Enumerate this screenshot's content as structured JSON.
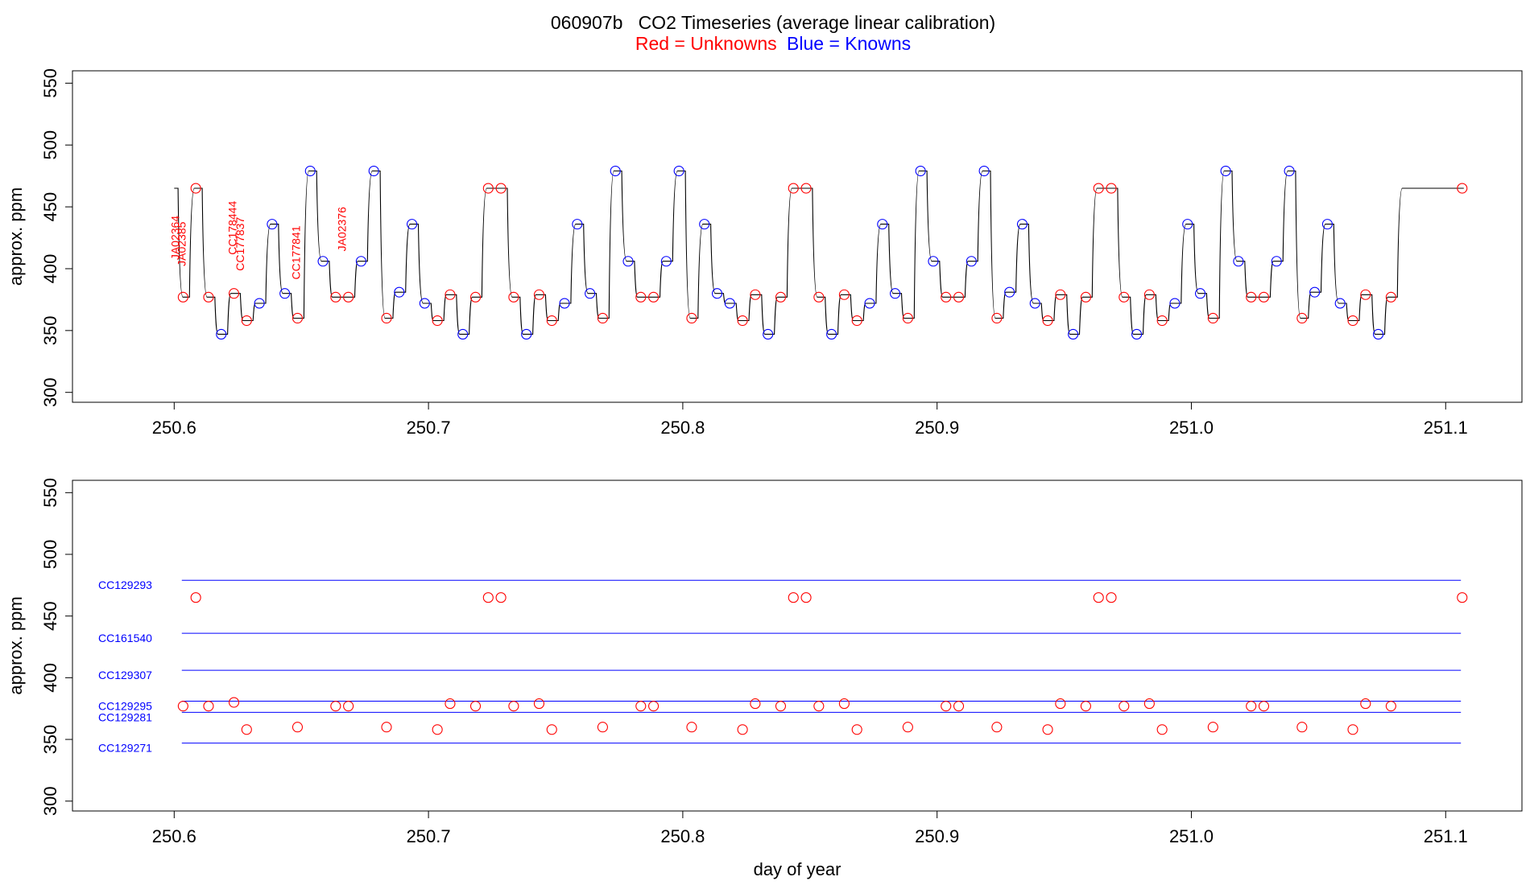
{
  "title": "060907b   CO2 Timeseries (average linear calibration)",
  "subtitle": {
    "red": "Red = Unknowns",
    "blue": "Blue = Knowns",
    "red_color": "#ff0000",
    "blue_color": "#0000ff"
  },
  "chart_data": [
    {
      "type": "line",
      "panel": "top",
      "ylabel": "approx. ppm",
      "xlabel": "",
      "xlim": [
        250.56,
        251.13
      ],
      "ylim": [
        292,
        560
      ],
      "x_ticks": [
        "250.6",
        "250.7",
        "250.8",
        "250.9",
        "251.0",
        "251.1"
      ],
      "y_ticks": [
        "300",
        "350",
        "400",
        "450",
        "500",
        "550"
      ],
      "line_color": "#000000",
      "trace_levels": [
        [
          250.6,
          465
        ],
        [
          250.6015,
          377
        ],
        [
          250.606,
          465
        ],
        [
          250.611,
          377
        ],
        [
          250.616,
          347
        ],
        [
          250.621,
          380
        ],
        [
          250.626,
          358
        ],
        [
          250.631,
          372
        ],
        [
          250.636,
          436
        ],
        [
          250.641,
          380
        ],
        [
          250.646,
          360
        ],
        [
          250.651,
          479
        ],
        [
          250.656,
          406
        ],
        [
          250.661,
          377
        ],
        [
          250.671,
          406
        ],
        [
          250.676,
          479
        ],
        [
          250.681,
          360
        ],
        [
          250.686,
          381
        ],
        [
          250.691,
          436
        ],
        [
          250.696,
          372
        ],
        [
          250.701,
          358
        ],
        [
          250.706,
          379
        ],
        [
          250.711,
          347
        ],
        [
          250.716,
          377
        ],
        [
          250.721,
          465
        ],
        [
          250.731,
          377
        ],
        [
          250.736,
          347
        ],
        [
          250.741,
          379
        ],
        [
          250.746,
          358
        ],
        [
          250.751,
          372
        ],
        [
          250.756,
          436
        ],
        [
          250.761,
          380
        ],
        [
          250.766,
          360
        ],
        [
          250.771,
          479
        ],
        [
          250.776,
          406
        ],
        [
          250.781,
          377
        ],
        [
          250.791,
          406
        ],
        [
          250.796,
          479
        ],
        [
          250.801,
          360
        ],
        [
          250.806,
          436
        ],
        [
          250.811,
          380
        ],
        [
          250.816,
          372
        ],
        [
          250.821,
          358
        ],
        [
          250.826,
          379
        ],
        [
          250.831,
          347
        ],
        [
          250.836,
          377
        ],
        [
          250.841,
          465
        ],
        [
          250.851,
          377
        ],
        [
          250.856,
          347
        ],
        [
          250.861,
          379
        ],
        [
          250.866,
          358
        ],
        [
          250.871,
          372
        ],
        [
          250.876,
          436
        ],
        [
          250.881,
          380
        ],
        [
          250.886,
          360
        ],
        [
          250.891,
          479
        ],
        [
          250.896,
          406
        ],
        [
          250.901,
          377
        ],
        [
          250.911,
          406
        ],
        [
          250.916,
          479
        ],
        [
          250.921,
          360
        ],
        [
          250.926,
          381
        ],
        [
          250.931,
          436
        ],
        [
          250.936,
          372
        ],
        [
          250.941,
          358
        ],
        [
          250.946,
          379
        ],
        [
          250.951,
          347
        ],
        [
          250.956,
          377
        ],
        [
          250.961,
          465
        ],
        [
          250.971,
          377
        ],
        [
          250.976,
          347
        ],
        [
          250.981,
          379
        ],
        [
          250.986,
          358
        ],
        [
          250.991,
          372
        ],
        [
          250.996,
          436
        ],
        [
          251.001,
          380
        ],
        [
          251.006,
          360
        ],
        [
          251.011,
          479
        ],
        [
          251.016,
          406
        ],
        [
          251.021,
          377
        ],
        [
          251.031,
          406
        ],
        [
          251.036,
          479
        ],
        [
          251.041,
          360
        ],
        [
          251.046,
          381
        ],
        [
          251.051,
          436
        ],
        [
          251.056,
          372
        ],
        [
          251.061,
          358
        ],
        [
          251.066,
          379
        ],
        [
          251.071,
          347
        ],
        [
          251.076,
          377
        ],
        [
          251.081,
          465
        ],
        [
          251.1065,
          465
        ]
      ],
      "unknowns": [
        [
          250.6035,
          377
        ],
        [
          250.6085,
          465
        ],
        [
          250.6135,
          377
        ],
        [
          250.6235,
          380
        ],
        [
          250.6285,
          358
        ],
        [
          250.6485,
          360
        ],
        [
          250.6635,
          377
        ],
        [
          250.6685,
          377
        ],
        [
          250.6835,
          360
        ],
        [
          250.7035,
          358
        ],
        [
          250.7085,
          379
        ],
        [
          250.7185,
          377
        ],
        [
          250.7235,
          465
        ],
        [
          250.7285,
          465
        ],
        [
          250.7335,
          377
        ],
        [
          250.7435,
          379
        ],
        [
          250.7485,
          358
        ],
        [
          250.7685,
          360
        ],
        [
          250.7835,
          377
        ],
        [
          250.7885,
          377
        ],
        [
          250.8035,
          360
        ],
        [
          250.8235,
          358
        ],
        [
          250.8285,
          379
        ],
        [
          250.8385,
          377
        ],
        [
          250.8435,
          465
        ],
        [
          250.8485,
          465
        ],
        [
          250.8535,
          377
        ],
        [
          250.8635,
          379
        ],
        [
          250.8685,
          358
        ],
        [
          250.8885,
          360
        ],
        [
          250.9035,
          377
        ],
        [
          250.9085,
          377
        ],
        [
          250.9235,
          360
        ],
        [
          250.9435,
          358
        ],
        [
          250.9485,
          379
        ],
        [
          250.9585,
          377
        ],
        [
          250.9635,
          465
        ],
        [
          250.9685,
          465
        ],
        [
          250.9735,
          377
        ],
        [
          250.9835,
          379
        ],
        [
          250.9885,
          358
        ],
        [
          251.0085,
          360
        ],
        [
          251.0235,
          377
        ],
        [
          251.0285,
          377
        ],
        [
          251.0435,
          360
        ],
        [
          251.0635,
          358
        ],
        [
          251.0685,
          379
        ],
        [
          251.0785,
          377
        ],
        [
          251.1065,
          465
        ]
      ],
      "knowns": [
        [
          250.6185,
          347
        ],
        [
          250.6335,
          372
        ],
        [
          250.6385,
          436
        ],
        [
          250.6435,
          380
        ],
        [
          250.6535,
          479
        ],
        [
          250.6585,
          406
        ],
        [
          250.6735,
          406
        ],
        [
          250.6785,
          479
        ],
        [
          250.6885,
          381
        ],
        [
          250.6935,
          436
        ],
        [
          250.6985,
          372
        ],
        [
          250.7135,
          347
        ],
        [
          250.7385,
          347
        ],
        [
          250.7535,
          372
        ],
        [
          250.7585,
          436
        ],
        [
          250.7635,
          380
        ],
        [
          250.7735,
          479
        ],
        [
          250.7785,
          406
        ],
        [
          250.7935,
          406
        ],
        [
          250.7985,
          479
        ],
        [
          250.8085,
          436
        ],
        [
          250.8135,
          380
        ],
        [
          250.8185,
          372
        ],
        [
          250.8335,
          347
        ],
        [
          250.8585,
          347
        ],
        [
          250.8735,
          372
        ],
        [
          250.8785,
          436
        ],
        [
          250.8835,
          380
        ],
        [
          250.8935,
          479
        ],
        [
          250.8985,
          406
        ],
        [
          250.9135,
          406
        ],
        [
          250.9185,
          479
        ],
        [
          250.9285,
          381
        ],
        [
          250.9335,
          436
        ],
        [
          250.9385,
          372
        ],
        [
          250.9535,
          347
        ],
        [
          250.9785,
          347
        ],
        [
          250.9935,
          372
        ],
        [
          250.9985,
          436
        ],
        [
          251.0035,
          380
        ],
        [
          251.0135,
          479
        ],
        [
          251.0185,
          406
        ],
        [
          251.0335,
          406
        ],
        [
          251.0385,
          479
        ],
        [
          251.0485,
          381
        ],
        [
          251.0535,
          436
        ],
        [
          251.0585,
          372
        ],
        [
          251.0735,
          347
        ]
      ],
      "annotations": [
        {
          "label": "JA02364",
          "x": 250.602,
          "y": 425
        },
        {
          "label": "JA02385",
          "x": 250.6045,
          "y": 420
        },
        {
          "label": "CC178444",
          "x": 250.6245,
          "y": 433
        },
        {
          "label": "CC177837",
          "x": 250.6275,
          "y": 420
        },
        {
          "label": "CC177841",
          "x": 250.6495,
          "y": 413
        },
        {
          "label": "JA02376",
          "x": 250.6675,
          "y": 432
        }
      ]
    },
    {
      "type": "scatter",
      "panel": "bottom",
      "ylabel": "approx. ppm",
      "xlabel": "day of year",
      "xlim": [
        250.56,
        251.13
      ],
      "ylim": [
        292,
        560
      ],
      "x_ticks": [
        "250.6",
        "250.7",
        "250.8",
        "250.9",
        "251.0",
        "251.1"
      ],
      "y_ticks": [
        "300",
        "350",
        "400",
        "450",
        "500",
        "550"
      ],
      "reference_lines": [
        {
          "label": "CC129293",
          "y": 479
        },
        {
          "label": "CC161540",
          "y": 436
        },
        {
          "label": "CC129307",
          "y": 406
        },
        {
          "label": "CC129295",
          "y": 381
        },
        {
          "label": "CC129281",
          "y": 372
        },
        {
          "label": "CC129271",
          "y": 347
        }
      ],
      "reference_xrange": [
        250.603,
        251.106
      ],
      "unknowns": [
        [
          250.6035,
          377
        ],
        [
          250.6085,
          465
        ],
        [
          250.6135,
          377
        ],
        [
          250.6235,
          380
        ],
        [
          250.6285,
          358
        ],
        [
          250.6485,
          360
        ],
        [
          250.6635,
          377
        ],
        [
          250.6685,
          377
        ],
        [
          250.6835,
          360
        ],
        [
          250.7035,
          358
        ],
        [
          250.7085,
          379
        ],
        [
          250.7185,
          377
        ],
        [
          250.7235,
          465
        ],
        [
          250.7285,
          465
        ],
        [
          250.7335,
          377
        ],
        [
          250.7435,
          379
        ],
        [
          250.7485,
          358
        ],
        [
          250.7685,
          360
        ],
        [
          250.7835,
          377
        ],
        [
          250.7885,
          377
        ],
        [
          250.8035,
          360
        ],
        [
          250.8235,
          358
        ],
        [
          250.8285,
          379
        ],
        [
          250.8385,
          377
        ],
        [
          250.8435,
          465
        ],
        [
          250.8485,
          465
        ],
        [
          250.8535,
          377
        ],
        [
          250.8635,
          379
        ],
        [
          250.8685,
          358
        ],
        [
          250.8885,
          360
        ],
        [
          250.9035,
          377
        ],
        [
          250.9085,
          377
        ],
        [
          250.9235,
          360
        ],
        [
          250.9435,
          358
        ],
        [
          250.9485,
          379
        ],
        [
          250.9585,
          377
        ],
        [
          250.9635,
          465
        ],
        [
          250.9685,
          465
        ],
        [
          250.9735,
          377
        ],
        [
          250.9835,
          379
        ],
        [
          250.9885,
          358
        ],
        [
          251.0085,
          360
        ],
        [
          251.0235,
          377
        ],
        [
          251.0285,
          377
        ],
        [
          251.0435,
          360
        ],
        [
          251.0635,
          358
        ],
        [
          251.0685,
          379
        ],
        [
          251.0785,
          377
        ],
        [
          251.1065,
          465
        ]
      ]
    }
  ]
}
